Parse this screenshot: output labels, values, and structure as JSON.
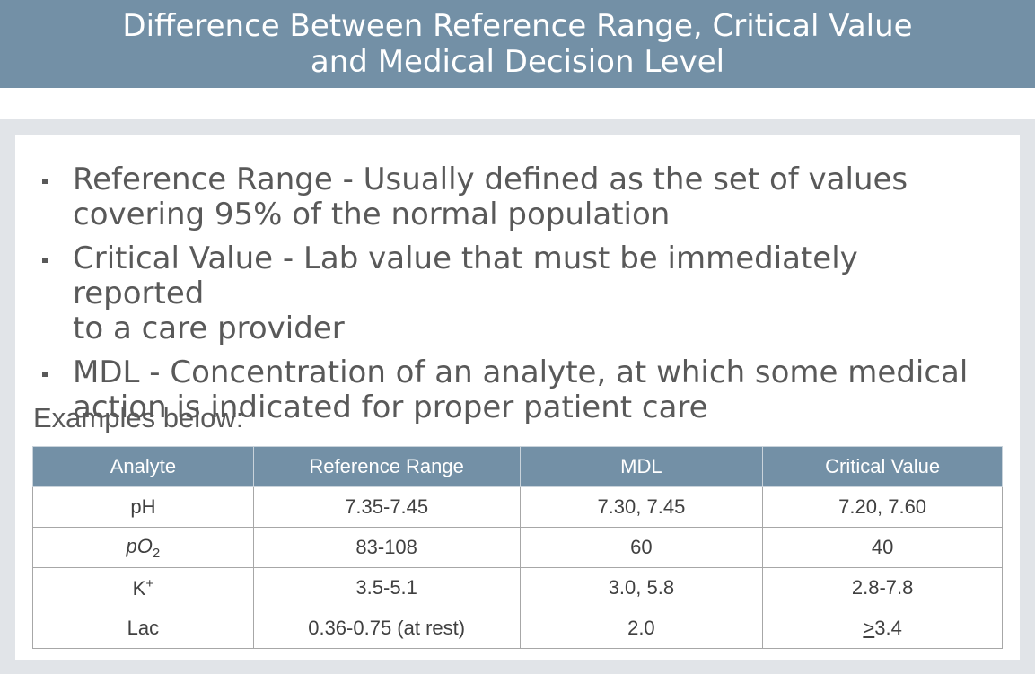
{
  "title": {
    "line1": "Difference Between Reference Range, Critical Value",
    "line2": "and Medical Decision Level"
  },
  "bullets": [
    {
      "line1": "Reference Range - Usually defined as the set of values",
      "line2": "covering 95% of the normal population"
    },
    {
      "line1": "Critical Value - Lab value that must be immediately reported",
      "line2": "to a care provider"
    },
    {
      "line1": "MDL - Concentration of an analyte, at which some medical",
      "line2": "action is indicated for proper patient care"
    }
  ],
  "examples_label": "Examples below:",
  "table": {
    "headers": [
      "Analyte",
      "Reference Range",
      "MDL",
      "Critical Value"
    ],
    "rows": [
      {
        "analyte": "pH",
        "reference_range": "7.35-7.45",
        "mdl": "7.30, 7.45",
        "critical_value": "7.20, 7.60"
      },
      {
        "analyte_base": "pO",
        "analyte_sub": "2",
        "reference_range": "83-108",
        "mdl": "60",
        "critical_value": "40"
      },
      {
        "analyte_base": "K",
        "analyte_sup": "+",
        "reference_range": "3.5-5.1",
        "mdl": "3.0, 5.8",
        "critical_value": "2.8-7.8"
      },
      {
        "analyte": "Lac",
        "reference_range": "0.36-0.75 (at rest)",
        "mdl": "2.0",
        "critical_value_mark": ">",
        "critical_value": "3.4"
      }
    ]
  },
  "colors": {
    "title_bar": "#7390a6",
    "table_header": "#7390a6",
    "frame": "#e1e4e8",
    "text": "#595959"
  }
}
